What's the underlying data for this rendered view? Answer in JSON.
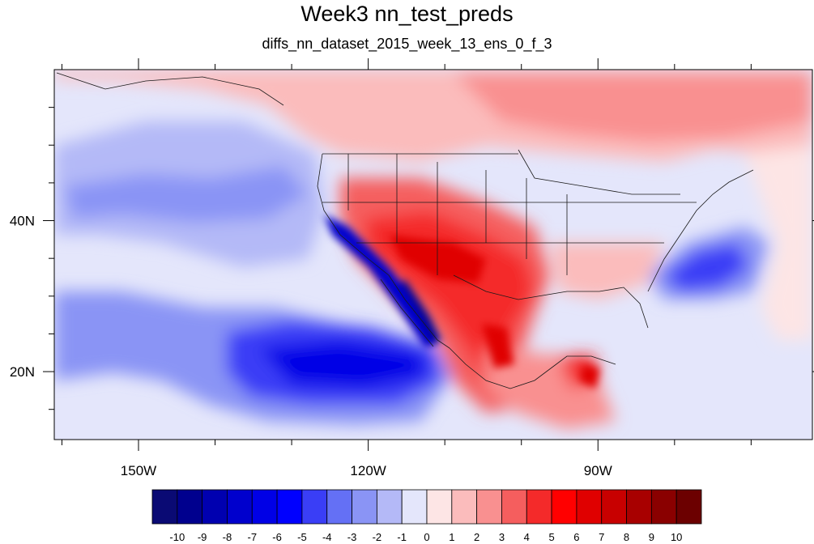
{
  "title": "Week3 nn_test_preds",
  "subtitle": "diffs_nn_dataset_2015_week_13_ens_0_f_3",
  "map": {
    "lon_range": [
      -161,
      -62
    ],
    "lat_range": [
      11,
      60
    ],
    "x_ticks": [
      {
        "lon": -150,
        "label": "150W"
      },
      {
        "lon": -120,
        "label": "120W"
      },
      {
        "lon": -90,
        "label": "90W"
      }
    ],
    "x_minor": [
      -160,
      -140,
      -130,
      -110,
      -100,
      -80,
      -70
    ],
    "y_ticks": [
      {
        "lat": 40,
        "label": "40N"
      },
      {
        "lat": 20,
        "label": "20N"
      }
    ],
    "y_minor": [
      15,
      25,
      30,
      35,
      45,
      50,
      55
    ]
  },
  "colorbar": {
    "labels": [
      "-10",
      "-9",
      "-8",
      "-7",
      "-6",
      "-5",
      "-4",
      "-3",
      "-2",
      "-1",
      "0",
      "1",
      "2",
      "3",
      "4",
      "5",
      "6",
      "7",
      "8",
      "9",
      "10"
    ],
    "colors": [
      "#0a0a74",
      "#00008e",
      "#0000b0",
      "#0000cd",
      "#0000e6",
      "#0000ff",
      "#3a3ef6",
      "#6470f5",
      "#8a94f5",
      "#b4b9f7",
      "#e4e6fb",
      "#fde5e5",
      "#fbbcbc",
      "#f99090",
      "#f55e5e",
      "#f42a2a",
      "#ff0000",
      "#e00000",
      "#c80000",
      "#a80000",
      "#8a0000",
      "#6c0000"
    ]
  }
}
